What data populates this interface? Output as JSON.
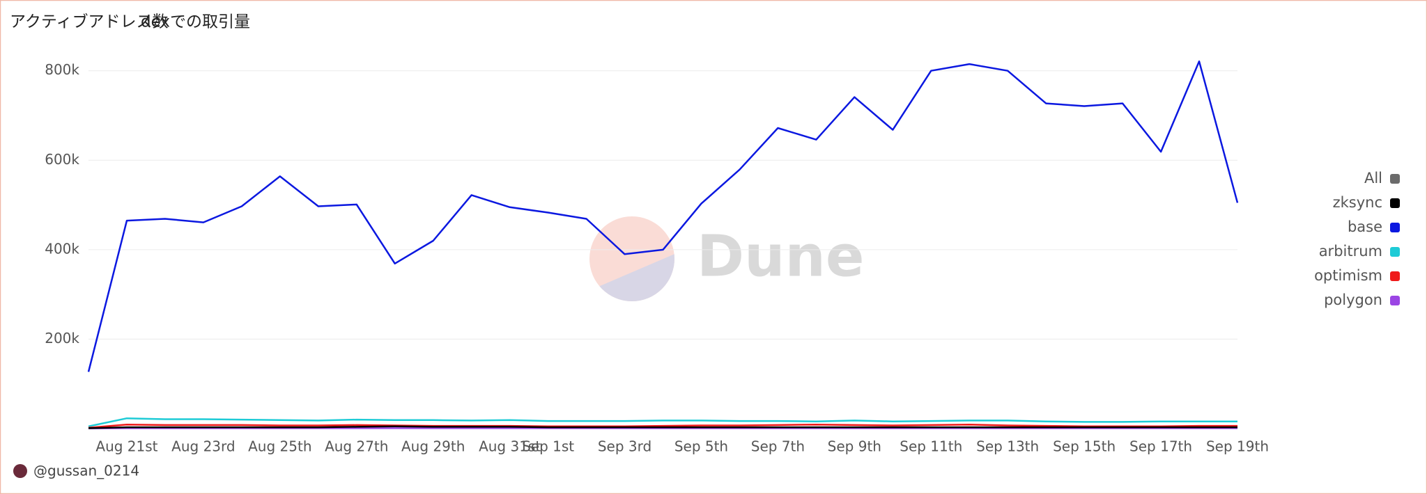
{
  "tabs": [
    "アクティブアドレス数",
    "dexでの取引量"
  ],
  "watermark": "Dune",
  "footer": "@gussan_0214",
  "chart_data": {
    "type": "line",
    "categories": [
      null,
      "Aug 21st",
      null,
      "Aug 23rd",
      null,
      "Aug 25th",
      null,
      "Aug 27th",
      null,
      "Aug 29th",
      null,
      "Aug 31st",
      "Sep 1st",
      null,
      "Sep 3rd",
      null,
      "Sep 5th",
      null,
      "Sep 7th",
      null,
      "Sep 9th",
      null,
      "Sep 11th",
      null,
      "Sep 13th",
      null,
      "Sep 15th",
      null,
      "Sep 17th",
      null,
      "Sep 19th"
    ],
    "ylim": [
      0,
      840000
    ],
    "yticks": [
      {
        "value": 200000,
        "label": "200k"
      },
      {
        "value": 400000,
        "label": "400k"
      },
      {
        "value": 600000,
        "label": "600k"
      },
      {
        "value": 800000,
        "label": "800k"
      }
    ],
    "grid": true,
    "legend": "right",
    "series": [
      {
        "name": "All",
        "color": "#6b6b6b",
        "values": [
          null,
          null,
          null,
          null,
          null,
          null,
          null,
          null,
          null,
          null,
          null,
          null,
          null,
          null,
          null,
          null,
          null,
          null,
          null,
          null,
          null,
          null,
          null,
          null,
          null,
          null,
          null,
          null,
          null,
          null,
          null
        ]
      },
      {
        "name": "zksync",
        "color": "#000000",
        "values": [
          1000,
          3000,
          3000,
          3000,
          3000,
          3000,
          3000,
          4000,
          5000,
          4000,
          4000,
          4000,
          3000,
          3000,
          3000,
          3000,
          3000,
          3000,
          3000,
          3000,
          3000,
          3000,
          3000,
          3000,
          3000,
          3000,
          3000,
          3000,
          3000,
          3000,
          3000
        ]
      },
      {
        "name": "base",
        "color": "#0b18e0",
        "values": [
          127000,
          465000,
          469000,
          461000,
          497000,
          564000,
          497000,
          501000,
          369000,
          420000,
          522000,
          495000,
          483000,
          469000,
          390000,
          400000,
          503000,
          579000,
          672000,
          646000,
          741000,
          668000,
          800000,
          815000,
          800000,
          727000,
          721000,
          727000,
          619000,
          821000,
          505000
        ]
      },
      {
        "name": "arbitrum",
        "color": "#1ecbd6",
        "values": [
          5000,
          23000,
          21000,
          21000,
          20000,
          19000,
          18000,
          20000,
          19000,
          19000,
          18000,
          19000,
          17000,
          17000,
          17000,
          18000,
          18000,
          17000,
          17000,
          16000,
          18000,
          16000,
          17000,
          18000,
          18000,
          16000,
          15000,
          15000,
          16000,
          16000,
          16000
        ]
      },
      {
        "name": "optimism",
        "color": "#ef1a1a",
        "values": [
          2000,
          9000,
          8000,
          8000,
          8000,
          7000,
          7000,
          8000,
          7000,
          6000,
          6000,
          6000,
          5000,
          5000,
          5000,
          6000,
          7000,
          7000,
          8000,
          9000,
          8000,
          7000,
          8000,
          9000,
          7000,
          6000,
          5000,
          5000,
          5000,
          6000,
          6000
        ]
      },
      {
        "name": "polygon",
        "color": "#9b45e4",
        "values": [
          500,
          1000,
          1000,
          1000,
          1000,
          1000,
          1000,
          1000,
          1000,
          1000,
          1000,
          1000,
          1000,
          1000,
          1000,
          1000,
          1000,
          1000,
          1000,
          1000,
          1000,
          1000,
          1000,
          1000,
          1000,
          1000,
          1000,
          1000,
          1000,
          1000,
          1000
        ]
      }
    ]
  }
}
